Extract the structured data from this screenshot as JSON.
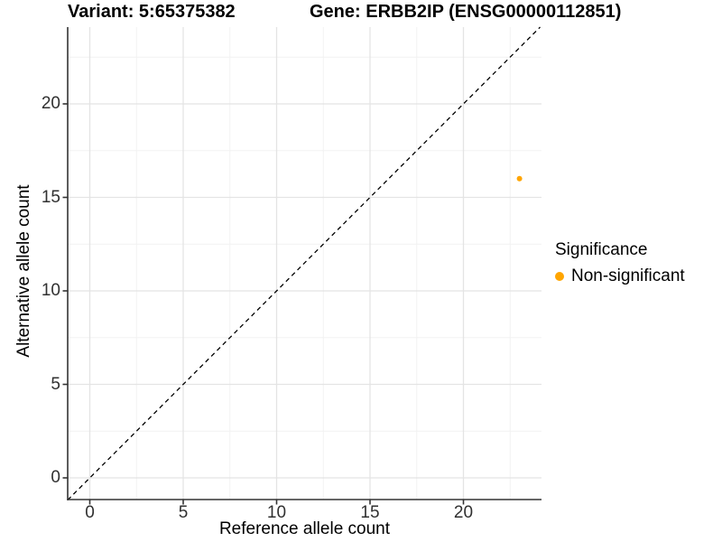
{
  "header": {
    "variant_title": "Variant: 5:65375382",
    "gene_title": "Gene: ERBB2IP (ENSG00000112851)"
  },
  "chart_data": {
    "type": "scatter",
    "xlabel": "Reference allele count",
    "ylabel": "Alternative allele count",
    "xlim": [
      -1.2,
      24.2
    ],
    "ylim": [
      -1.2,
      24.1
    ],
    "x_ticks": [
      0,
      5,
      10,
      15,
      20
    ],
    "y_ticks": [
      0,
      5,
      10,
      15,
      20
    ],
    "x_minor_ticks": [
      2.5,
      7.5,
      12.5,
      17.5,
      22.5
    ],
    "y_minor_ticks": [
      2.5,
      7.5,
      12.5,
      17.5,
      22.5
    ],
    "grid": "major and minor gridlines, white panel, no top/right border",
    "series": [
      {
        "name": "Non-significant",
        "color": "#FFA500",
        "points": [
          {
            "x": 23,
            "y": 16
          }
        ]
      }
    ],
    "reference_line": {
      "kind": "identity",
      "equation": "y = x",
      "style": "dashed",
      "color": "#000000"
    },
    "legend": {
      "title": "Significance",
      "position": "right",
      "items": [
        {
          "label": "Non-significant",
          "color": "#FFA500"
        }
      ]
    }
  }
}
